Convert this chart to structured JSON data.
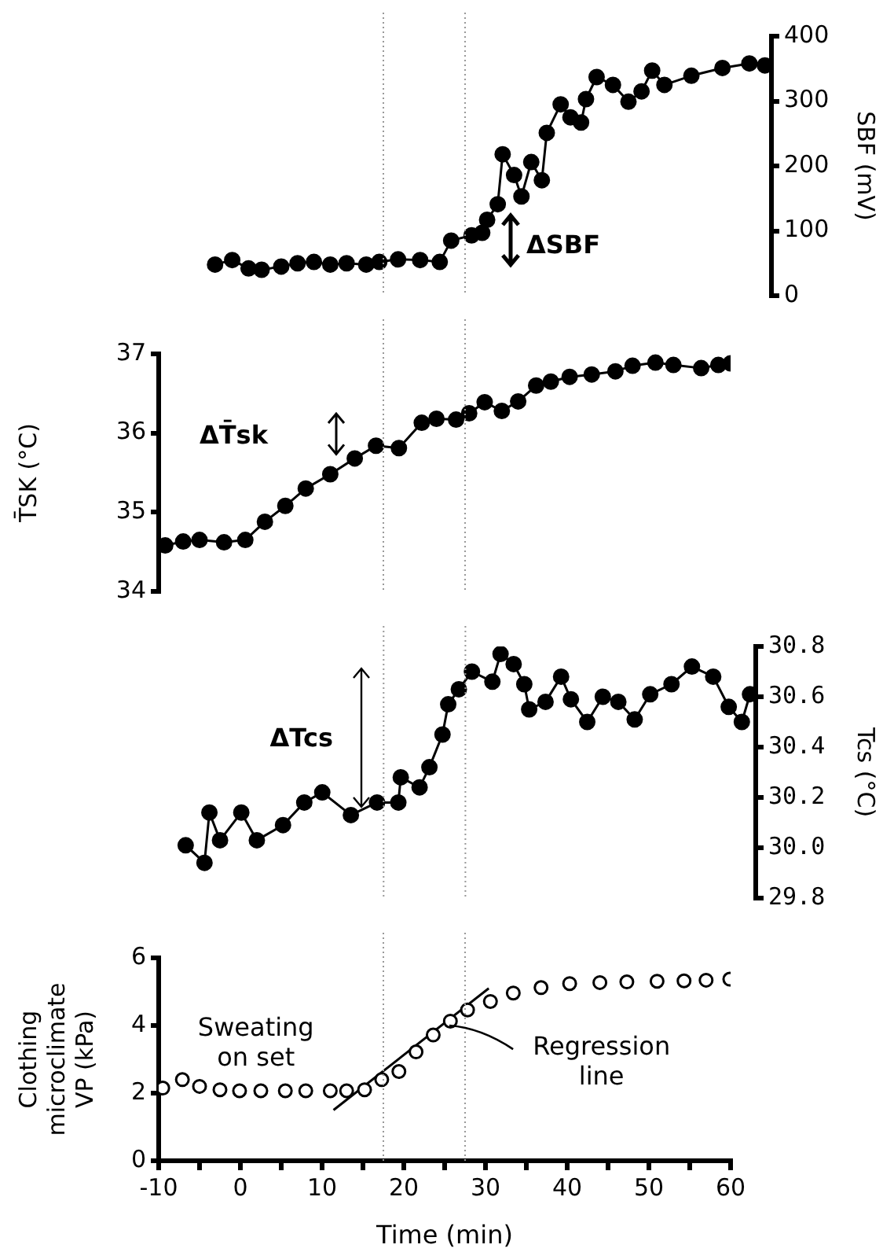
{
  "chart_data": [
    {
      "type": "line",
      "y2label": "SBF (mV)",
      "xlim": [
        -10,
        65
      ],
      "xticks": [
        -10,
        0,
        10,
        20,
        30,
        40,
        50,
        60
      ],
      "y2lim": [
        0,
        400
      ],
      "y2ticks": [
        0,
        100,
        200,
        300,
        400
      ],
      "tick_labels": "y",
      "grid": false,
      "legend": false,
      "series": [
        {
          "axis": "y2",
          "color": "#000000",
          "marker": "circle",
          "x": [
            -3.1,
            -1,
            1,
            2.6,
            5,
            7,
            9,
            11,
            13,
            15.4,
            17,
            19.3,
            22,
            24.4,
            25.8,
            28.3,
            29.6,
            30.2,
            31.5,
            32.1,
            33.5,
            34.4,
            35.6,
            36.9,
            37.5,
            39.2,
            40.4,
            41.7,
            42.3,
            43.6,
            45.6,
            47.5,
            49.1,
            50.4,
            51.9,
            55.2,
            59,
            62.3,
            64.2
          ],
          "values": [
            48,
            55,
            42,
            40,
            45,
            50,
            52,
            48,
            50,
            48,
            52,
            56,
            55,
            52,
            85,
            93,
            97,
            117,
            141,
            218,
            186,
            153,
            206,
            178,
            251,
            295,
            275,
            267,
            303,
            337,
            325,
            299,
            315,
            347,
            325,
            339,
            351,
            358,
            355
          ]
        }
      ],
      "ref_lines": [
        {
          "axis": "x",
          "value": 17.5,
          "color": "#999999",
          "line_style": "dotted"
        },
        {
          "axis": "x",
          "value": 27.5,
          "color": "#999999",
          "line_style": "dotted"
        }
      ],
      "annotations": [
        "ΔSBF"
      ]
    },
    {
      "type": "line",
      "ylabel": "T̄SK (°C)",
      "xlim": [
        -10,
        60
      ],
      "xticks": [
        -10,
        0,
        10,
        20,
        30,
        40,
        50,
        60
      ],
      "ylim": [
        34,
        37
      ],
      "yticks": [
        34,
        35,
        36,
        37
      ],
      "tick_labels": "y",
      "grid": false,
      "legend": false,
      "series": [
        {
          "color": "#000000",
          "marker": "circle",
          "x": [
            -9.2,
            -7,
            -5,
            -2,
            0.6,
            3,
            5.5,
            8,
            11,
            14,
            16.6,
            19.4,
            22.2,
            24,
            26.4,
            28,
            29.9,
            32,
            34,
            36.2,
            38,
            40.3,
            43,
            45.9,
            48,
            50.8,
            53,
            56.4,
            58.5,
            60
          ],
          "values": [
            34.58,
            34.63,
            34.65,
            34.62,
            34.65,
            34.88,
            35.08,
            35.3,
            35.48,
            35.68,
            35.84,
            35.81,
            36.13,
            36.18,
            36.17,
            36.25,
            36.39,
            36.28,
            36.4,
            36.6,
            36.65,
            36.71,
            36.74,
            36.78,
            36.85,
            36.89,
            36.86,
            36.82,
            36.86,
            36.88
          ]
        }
      ],
      "ref_lines": [
        {
          "axis": "x",
          "value": 17.5,
          "color": "#999999",
          "line_style": "dotted"
        },
        {
          "axis": "x",
          "value": 27.5,
          "color": "#999999",
          "line_style": "dotted"
        }
      ],
      "annotations": [
        "ΔT̄sk"
      ]
    },
    {
      "type": "line",
      "y2label": "Tcs (°C)",
      "xlim": [
        -10,
        63
      ],
      "xticks": [
        -10,
        0,
        10,
        20,
        30,
        40,
        50,
        60
      ],
      "y2lim": [
        29.8,
        30.8
      ],
      "y2ticks": [
        29.8,
        {
          "value": 30,
          "label": "30.0"
        },
        30.2,
        30.4,
        30.6,
        30.8
      ],
      "tick_labels": "y",
      "grid": false,
      "legend": false,
      "series": [
        {
          "axis": "y2",
          "color": "#000000",
          "marker": "circle",
          "x": [
            -6.7,
            -4.4,
            -3.8,
            -2.5,
            0.1,
            2,
            5.2,
            7.8,
            10,
            13.5,
            16.7,
            19.3,
            19.6,
            21.9,
            23.1,
            24.7,
            25.4,
            26.7,
            28.3,
            30.8,
            31.8,
            33.4,
            34.7,
            35.3,
            37.3,
            39.2,
            40.4,
            42.4,
            44.3,
            46.2,
            48.2,
            50.1,
            52.7,
            55.2,
            57.8,
            59.7,
            61.3,
            62.3
          ],
          "values": [
            30.01,
            29.94,
            30.14,
            30.03,
            30.14,
            30.03,
            30.09,
            30.18,
            30.22,
            30.13,
            30.18,
            30.18,
            30.28,
            30.24,
            30.32,
            30.45,
            30.57,
            30.63,
            30.7,
            30.66,
            30.77,
            30.73,
            30.65,
            30.55,
            30.58,
            30.68,
            30.59,
            30.5,
            30.6,
            30.58,
            30.51,
            30.61,
            30.65,
            30.72,
            30.68,
            30.56,
            30.5,
            30.61
          ]
        }
      ],
      "ref_lines": [
        {
          "axis": "x",
          "value": 17.5,
          "color": "#999999",
          "line_style": "dotted"
        },
        {
          "axis": "x",
          "value": 27.5,
          "color": "#999999",
          "line_style": "dotted"
        }
      ],
      "annotations": [
        "ΔTcs"
      ]
    },
    {
      "type": "scatter",
      "xlabel": "Time (min)",
      "ylabel": "Clothing\nmicroclimate\nVP (kPa)",
      "xlim": [
        -10,
        60
      ],
      "ylim": [
        0,
        6
      ],
      "yticks": [
        0,
        2,
        4,
        6
      ],
      "xticks": [
        -10,
        {
          "value": -5,
          "label": null
        },
        0,
        {
          "value": 5,
          "label": null
        },
        10,
        {
          "value": 15,
          "label": null
        },
        20,
        {
          "value": 25,
          "label": null
        },
        30,
        {
          "value": 35,
          "label": null
        },
        40,
        {
          "value": 45,
          "label": null
        },
        50,
        {
          "value": 55,
          "label": null
        },
        60
      ],
      "grid": false,
      "legend": false,
      "series": [
        {
          "type": "scatter",
          "color": "#000000",
          "marker": "circle",
          "x": [
            -9.5,
            -7.1,
            -5,
            -2.5,
            -0.1,
            2.5,
            5.5,
            8,
            11,
            13,
            15.2,
            17.3,
            19.4,
            21.5,
            23.6,
            25.7,
            27.8,
            30.6,
            33.4,
            36.8,
            40.3,
            44,
            47.3,
            51,
            54.3,
            57,
            59.9
          ],
          "values": [
            2.15,
            2.4,
            2.2,
            2.1,
            2.07,
            2.07,
            2.07,
            2.07,
            2.07,
            2.07,
            2.1,
            2.4,
            2.64,
            3.22,
            3.72,
            4.13,
            4.46,
            4.71,
            4.96,
            5.12,
            5.24,
            5.27,
            5.29,
            5.31,
            5.32,
            5.34,
            5.37
          ]
        },
        {
          "type": "line",
          "color": "#000000",
          "marker": "none",
          "x": [
            11.4,
            30.4
          ],
          "values": [
            1.5,
            5.1
          ]
        }
      ],
      "ref_lines": [
        {
          "axis": "x",
          "value": 17.5,
          "color": "#999999",
          "line_style": "dotted"
        },
        {
          "axis": "x",
          "value": 27.5,
          "color": "#999999",
          "line_style": "dotted"
        }
      ],
      "annotations": [
        "Sweating\non set",
        {
          "text": "Regression\nline",
          "x": 25.5,
          "y": 4.0
        }
      ]
    }
  ]
}
